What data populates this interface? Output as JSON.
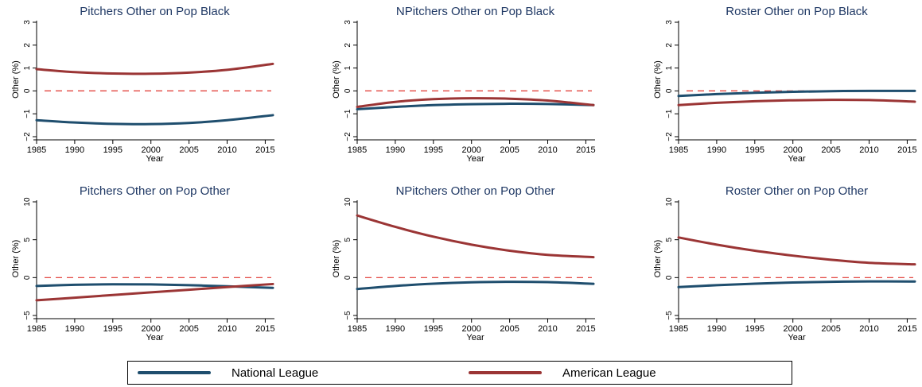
{
  "colors": {
    "national": "#1f4e6e",
    "american": "#9b3535",
    "reference": "#e0322c",
    "title": "#1f3864",
    "axis": "#000000"
  },
  "legend": {
    "national_label": "National League",
    "american_label": "American League"
  },
  "chart_data": [
    {
      "type": "line",
      "title": "Pitchers Other on Pop Black",
      "xlabel": "Year",
      "ylabel": "Other (%)",
      "xlim": [
        1985,
        2016
      ],
      "ylim": [
        -2,
        3
      ],
      "xticks": [
        1985,
        1990,
        1995,
        2000,
        2005,
        2010,
        2015
      ],
      "yticks": [
        -2,
        -1,
        0,
        1,
        2,
        3
      ],
      "reference_line": 0,
      "x": [
        1985,
        1990,
        1995,
        2000,
        2005,
        2010,
        2016
      ],
      "series": [
        {
          "name": "National League",
          "values": [
            -1.28,
            -1.38,
            -1.44,
            -1.45,
            -1.4,
            -1.28,
            -1.06
          ]
        },
        {
          "name": "American League",
          "values": [
            0.95,
            0.82,
            0.76,
            0.75,
            0.8,
            0.92,
            1.18
          ]
        }
      ]
    },
    {
      "type": "line",
      "title": "NPitchers Other on Pop Black",
      "xlabel": "Year",
      "ylabel": "Other (%)",
      "xlim": [
        1985,
        2016
      ],
      "ylim": [
        -2,
        3
      ],
      "xticks": [
        1985,
        1990,
        1995,
        2000,
        2005,
        2010,
        2015
      ],
      "yticks": [
        -2,
        -1,
        0,
        1,
        2,
        3
      ],
      "reference_line": 0,
      "x": [
        1985,
        1990,
        1995,
        2000,
        2005,
        2010,
        2016
      ],
      "series": [
        {
          "name": "National League",
          "values": [
            -0.8,
            -0.7,
            -0.62,
            -0.58,
            -0.56,
            -0.57,
            -0.62
          ]
        },
        {
          "name": "American League",
          "values": [
            -0.7,
            -0.48,
            -0.36,
            -0.32,
            -0.34,
            -0.42,
            -0.62
          ]
        }
      ]
    },
    {
      "type": "line",
      "title": "Roster Other on Pop Black",
      "xlabel": "Year",
      "ylabel": "Other (%)",
      "xlim": [
        1985,
        2016
      ],
      "ylim": [
        -2,
        3
      ],
      "xticks": [
        1985,
        1990,
        1995,
        2000,
        2005,
        2010,
        2015
      ],
      "yticks": [
        -2,
        -1,
        0,
        1,
        2,
        3
      ],
      "reference_line": 0,
      "x": [
        1985,
        1990,
        1995,
        2000,
        2005,
        2010,
        2016
      ],
      "series": [
        {
          "name": "National League",
          "values": [
            -0.22,
            -0.14,
            -0.08,
            -0.04,
            -0.01,
            0.0,
            0.0
          ]
        },
        {
          "name": "American League",
          "values": [
            -0.62,
            -0.52,
            -0.45,
            -0.41,
            -0.39,
            -0.4,
            -0.47
          ]
        }
      ]
    },
    {
      "type": "line",
      "title": "Pitchers Other on Pop Other",
      "xlabel": "Year",
      "ylabel": "Other (%)",
      "xlim": [
        1985,
        2016
      ],
      "ylim": [
        -5,
        10
      ],
      "xticks": [
        1985,
        1990,
        1995,
        2000,
        2005,
        2010,
        2015
      ],
      "yticks": [
        -5,
        0,
        5,
        10
      ],
      "reference_line": 0,
      "x": [
        1985,
        1990,
        1995,
        2000,
        2005,
        2010,
        2016
      ],
      "series": [
        {
          "name": "National League",
          "values": [
            -1.1,
            -0.95,
            -0.88,
            -0.9,
            -1.0,
            -1.15,
            -1.35
          ]
        },
        {
          "name": "American League",
          "values": [
            -3.0,
            -2.65,
            -2.3,
            -1.95,
            -1.6,
            -1.25,
            -0.85
          ]
        }
      ]
    },
    {
      "type": "line",
      "title": "NPitchers Other on Pop Other",
      "xlabel": "Year",
      "ylabel": "Other (%)",
      "xlim": [
        1985,
        2016
      ],
      "ylim": [
        -5,
        10
      ],
      "xticks": [
        1985,
        1990,
        1995,
        2000,
        2005,
        2010,
        2015
      ],
      "yticks": [
        -5,
        0,
        5,
        10
      ],
      "reference_line": 0,
      "x": [
        1985,
        1990,
        1995,
        2000,
        2005,
        2010,
        2016
      ],
      "series": [
        {
          "name": "National League",
          "values": [
            -1.5,
            -1.1,
            -0.8,
            -0.62,
            -0.55,
            -0.6,
            -0.82
          ]
        },
        {
          "name": "American League",
          "values": [
            8.2,
            6.7,
            5.4,
            4.35,
            3.55,
            3.0,
            2.7
          ]
        }
      ]
    },
    {
      "type": "line",
      "title": "Roster Other on Pop Other",
      "xlabel": "Year",
      "ylabel": "Other (%)",
      "xlim": [
        1985,
        2016
      ],
      "ylim": [
        -5,
        10
      ],
      "xticks": [
        1985,
        1990,
        1995,
        2000,
        2005,
        2010,
        2015
      ],
      "yticks": [
        -5,
        0,
        5,
        10
      ],
      "reference_line": 0,
      "x": [
        1985,
        1990,
        1995,
        2000,
        2005,
        2010,
        2016
      ],
      "series": [
        {
          "name": "National League",
          "values": [
            -1.25,
            -1.0,
            -0.8,
            -0.65,
            -0.55,
            -0.5,
            -0.52
          ]
        },
        {
          "name": "American League",
          "values": [
            5.3,
            4.35,
            3.55,
            2.9,
            2.35,
            1.95,
            1.75
          ]
        }
      ]
    }
  ]
}
